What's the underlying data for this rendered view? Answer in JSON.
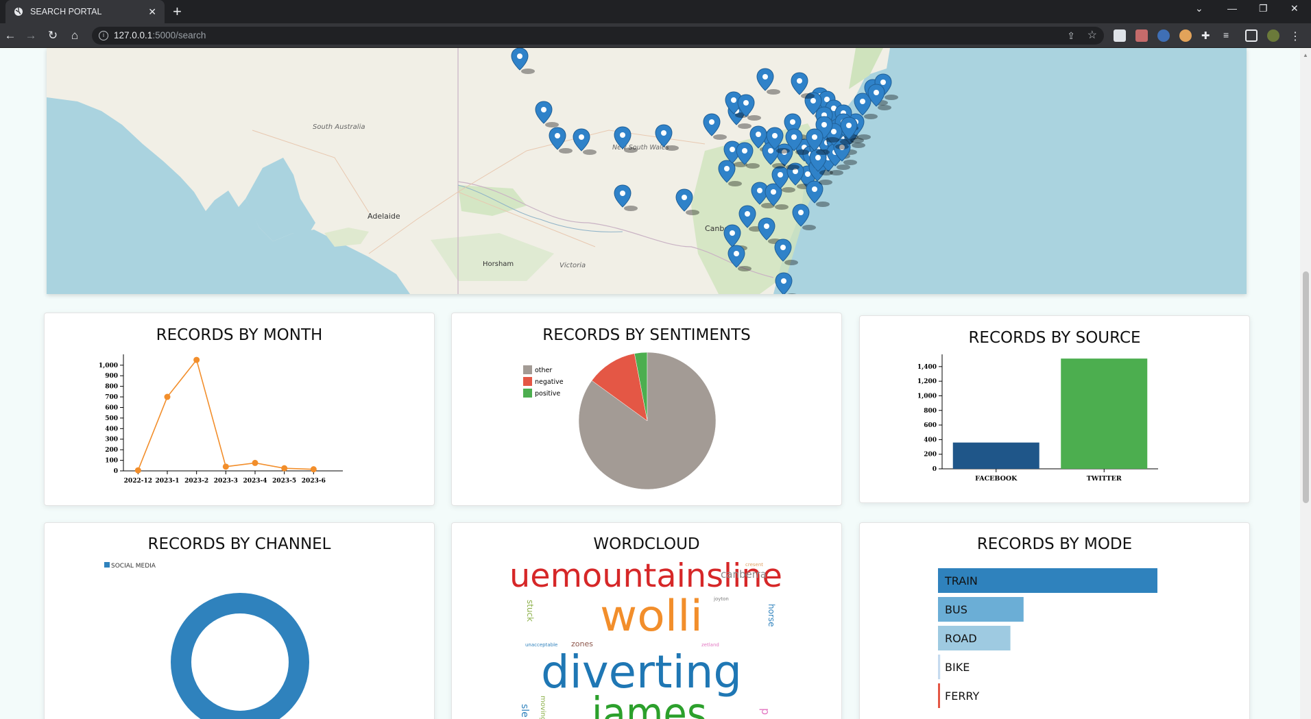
{
  "browser": {
    "tab_title": "SEARCH PORTAL",
    "url_host": "127.0.0.1",
    "url_path": ":5000/search"
  },
  "map": {
    "labels": [
      "South Australia",
      "New South Wales",
      "Adelaide",
      "Horsham",
      "Victoria",
      "Canberra"
    ]
  },
  "cards": {
    "month": {
      "title": "RECORDS BY MONTH"
    },
    "sentiment": {
      "title": "RECORDS BY SENTIMENTS"
    },
    "source": {
      "title": "RECORDS BY SOURCE"
    },
    "channel": {
      "title": "RECORDS BY CHANNEL"
    },
    "wordcloud": {
      "title": "WORDCLOUD"
    },
    "mode": {
      "title": "RECORDS BY MODE"
    }
  },
  "chart_data": [
    {
      "id": "month",
      "type": "line",
      "categories": [
        "2022-12",
        "2023-1",
        "2023-2",
        "2023-3",
        "2023-4",
        "2023-5",
        "2023-6"
      ],
      "values": [
        5,
        700,
        1050,
        40,
        75,
        25,
        15
      ],
      "yticks": [
        "0",
        "100",
        "200",
        "300",
        "400",
        "500",
        "600",
        "700",
        "800",
        "900",
        "1,000"
      ],
      "ylim": [
        0,
        1070
      ],
      "color": "#f28e2b"
    },
    {
      "id": "sentiment",
      "type": "pie",
      "labels": [
        "other",
        "negative",
        "positive"
      ],
      "values": [
        85,
        12,
        3
      ],
      "colors": [
        "#a39b95",
        "#e45745",
        "#4cae4f"
      ],
      "legend": "top-left"
    },
    {
      "id": "source",
      "type": "bar",
      "categories": [
        "FACEBOOK",
        "TWITTER"
      ],
      "values": [
        360,
        1510
      ],
      "colors": [
        "#1f5689",
        "#4cae4f"
      ],
      "yticks": [
        "0",
        "200",
        "400",
        "600",
        "800",
        "1,000",
        "1,200",
        "1,400"
      ],
      "ylim": [
        0,
        1530
      ]
    },
    {
      "id": "channel",
      "type": "pie",
      "labels": [
        "SOCIAL MEDIA"
      ],
      "values": [
        100
      ],
      "colors": [
        "#2f82bd"
      ],
      "legend": "top-left"
    },
    {
      "id": "mode",
      "type": "bar",
      "orientation": "horizontal",
      "categories": [
        "TRAIN",
        "BUS",
        "ROAD",
        "BIKE",
        "FERRY"
      ],
      "values": [
        100,
        39,
        33,
        1,
        0.8
      ],
      "colors": [
        "#2f82bd",
        "#6baed6",
        "#9ecae1",
        "#c6dbef",
        "#e45745"
      ]
    }
  ],
  "wordcloud_words": [
    {
      "text": "uemountainsline",
      "color": "#d62728"
    },
    {
      "text": "canberra",
      "color": "#8c8c8c"
    },
    {
      "text": "cresent",
      "color": "#e0a060"
    },
    {
      "text": "joyton",
      "color": "#7a7a7a"
    },
    {
      "text": "stuck",
      "color": "#8cb04a"
    },
    {
      "text": "horse",
      "color": "#2f82bd"
    },
    {
      "text": "wolli",
      "color": "#f28e2b"
    },
    {
      "text": "unacceptable",
      "color": "#2f82bd"
    },
    {
      "text": "zones",
      "color": "#8c564b"
    },
    {
      "text": "zetland",
      "color": "#e377c2"
    },
    {
      "text": "diverting",
      "color": "#1f77b4"
    },
    {
      "text": "james",
      "color": "#2ca02c"
    },
    {
      "text": "moving",
      "color": "#8cb04a"
    },
    {
      "text": "sle",
      "color": "#2f82bd"
    },
    {
      "text": "p",
      "color": "#e377c2"
    }
  ]
}
